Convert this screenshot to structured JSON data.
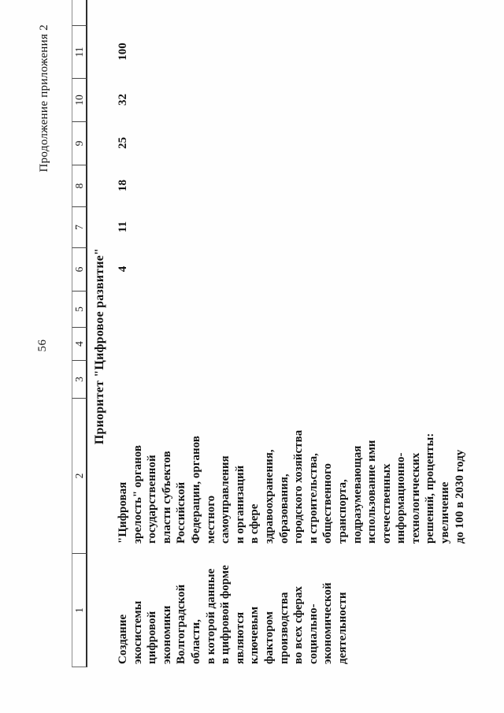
{
  "page": {
    "number": "56",
    "header_right": "Продолжение приложения 2"
  },
  "table": {
    "column_headers": [
      "1",
      "2",
      "3",
      "4",
      "5",
      "6",
      "7",
      "8",
      "9",
      "10",
      "11"
    ],
    "section_title": "Приоритет \"Цифровое развитие\"",
    "row": {
      "goal_lines": [
        "Создание",
        "экосистемы",
        "цифровой",
        "экономики",
        "Волгоградской",
        "области,",
        "в которой данные",
        "в цифровой форме",
        "являются",
        "ключевым",
        "фактором",
        "производства",
        "во всех сферах",
        "социально-",
        "экономической",
        "деятельности"
      ],
      "indicator_lines": [
        "\"Цифровая",
        "зрелость\" органов",
        "государственной",
        "власти субъектов",
        "Российской",
        "Федерации, органов",
        "местного",
        "самоуправления",
        "и организаций",
        "в сфере",
        "здравоохранения,",
        "образования,",
        "городского хозяйства",
        "и строительства,",
        "общественного",
        "транспорта,",
        "подразумевающая",
        "использование ими",
        "отечественных",
        "информационно-",
        "технологических",
        "решений, проценты:",
        "увеличение",
        "до 100 в 2030 году"
      ],
      "values": [
        "",
        "",
        "",
        "",
        "",
        "4",
        "11",
        "18",
        "25",
        "32",
        "100"
      ]
    }
  }
}
